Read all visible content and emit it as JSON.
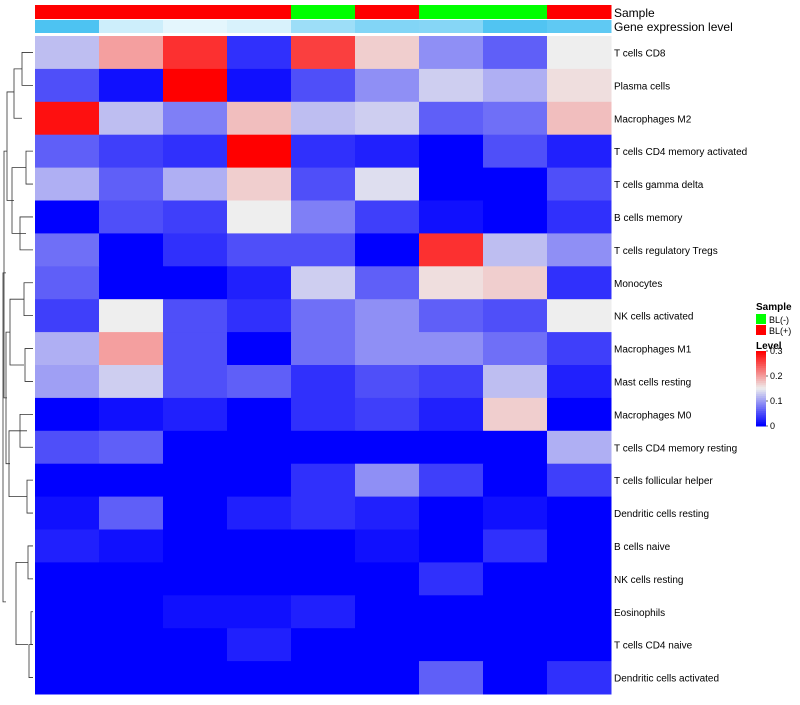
{
  "chart_data": {
    "type": "heatmap",
    "annotations": [
      {
        "label": "Sample",
        "values": [
          "BL(+)",
          "BL(+)",
          "BL(+)",
          "BL(+)",
          "BL(-)",
          "BL(+)",
          "BL(-)",
          "BL(-)",
          "BL(+)"
        ]
      },
      {
        "label": "Gene expression level",
        "values": [
          0.0,
          0.72,
          0.85,
          0.78,
          0.45,
          0.3,
          0.32,
          0.02,
          0.1
        ]
      }
    ],
    "rows": [
      "T cells CD8",
      "Plasma cells",
      "Macrophages M2",
      "T cells CD4 memory activated",
      "T cells gamma delta",
      "B cells memory",
      "T cells regulatory  Tregs",
      "Monocytes",
      "NK cells activated",
      "Macrophages M1",
      "Mast cells resting",
      "Macrophages M0",
      "T cells CD4 memory resting",
      "T cells follicular helper",
      "Dendritic cells resting",
      "B cells naive",
      "NK cells resting",
      "Eosinophils",
      "T cells CD4 naive",
      "Dendritic cells activated"
    ],
    "values": [
      [
        0.12,
        0.2,
        0.27,
        0.03,
        0.26,
        0.17,
        0.09,
        0.06,
        0.15
      ],
      [
        0.05,
        0.01,
        0.3,
        0.01,
        0.05,
        0.09,
        0.13,
        0.11,
        0.16
      ],
      [
        0.29,
        0.12,
        0.08,
        0.18,
        0.12,
        0.13,
        0.06,
        0.07,
        0.18
      ],
      [
        0.06,
        0.04,
        0.03,
        0.3,
        0.03,
        0.02,
        0.0,
        0.05,
        0.02
      ],
      [
        0.11,
        0.06,
        0.11,
        0.17,
        0.05,
        0.14,
        0.0,
        0.0,
        0.05
      ],
      [
        0.0,
        0.05,
        0.04,
        0.15,
        0.08,
        0.04,
        0.01,
        0.0,
        0.03
      ],
      [
        0.07,
        0.0,
        0.03,
        0.05,
        0.05,
        0.0,
        0.27,
        0.12,
        0.09
      ],
      [
        0.06,
        0.0,
        0.0,
        0.02,
        0.13,
        0.06,
        0.16,
        0.17,
        0.03
      ],
      [
        0.04,
        0.15,
        0.05,
        0.03,
        0.07,
        0.09,
        0.06,
        0.05,
        0.15
      ],
      [
        0.11,
        0.2,
        0.05,
        0.0,
        0.07,
        0.09,
        0.09,
        0.07,
        0.04
      ],
      [
        0.1,
        0.13,
        0.05,
        0.06,
        0.03,
        0.05,
        0.04,
        0.12,
        0.02
      ],
      [
        0.0,
        0.01,
        0.02,
        0.0,
        0.03,
        0.04,
        0.02,
        0.17,
        0.0
      ],
      [
        0.05,
        0.06,
        0.0,
        0.0,
        0.0,
        0.0,
        0.0,
        0.0,
        0.11
      ],
      [
        0.0,
        0.0,
        0.0,
        0.0,
        0.03,
        0.09,
        0.04,
        0.0,
        0.04
      ],
      [
        0.01,
        0.06,
        0.0,
        0.02,
        0.03,
        0.02,
        0.0,
        0.01,
        0.0
      ],
      [
        0.02,
        0.01,
        0.0,
        0.0,
        0.0,
        0.01,
        0.0,
        0.03,
        0.0
      ],
      [
        0.0,
        0.0,
        0.0,
        0.0,
        0.0,
        0.0,
        0.03,
        0.0,
        0.0
      ],
      [
        0.0,
        0.0,
        0.01,
        0.01,
        0.02,
        0.0,
        0.0,
        0.0,
        0.0
      ],
      [
        0.0,
        0.0,
        0.0,
        0.02,
        0.0,
        0.0,
        0.0,
        0.0,
        0.0
      ],
      [
        0.0,
        0.0,
        0.0,
        0.0,
        0.0,
        0.0,
        0.06,
        0.0,
        0.03
      ]
    ],
    "color_scale": {
      "min": 0,
      "max": 0.3,
      "low": "#0000ff",
      "mid": "#eeeeee",
      "high": "#ff0000",
      "mid_value": 0.15
    },
    "legend": {
      "sample_title": "Sample",
      "sample_items": [
        {
          "label": "BL(-)",
          "color": "#00ff00"
        },
        {
          "label": "BL(+)",
          "color": "#ff0000"
        }
      ],
      "level_title": "Level",
      "level_ticks": [
        "0",
        "0.1",
        "0.2",
        "0.3"
      ],
      "placement": "right"
    },
    "expression_palette": {
      "low": "#4dc3f2",
      "high": "#ffffff"
    }
  }
}
